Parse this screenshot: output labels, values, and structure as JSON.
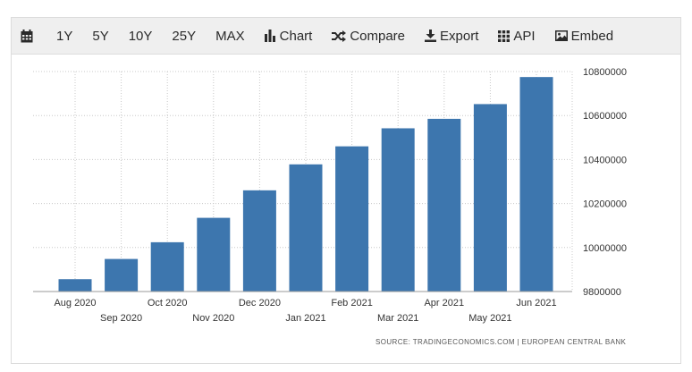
{
  "toolbar": {
    "items": [
      {
        "label": "",
        "icon": "calendar-icon"
      },
      {
        "label": "1Y",
        "icon": ""
      },
      {
        "label": "5Y",
        "icon": ""
      },
      {
        "label": "10Y",
        "icon": ""
      },
      {
        "label": "25Y",
        "icon": ""
      },
      {
        "label": "MAX",
        "icon": ""
      },
      {
        "label": "Chart",
        "icon": "bar-chart-icon"
      },
      {
        "label": "Compare",
        "icon": "shuffle-icon"
      },
      {
        "label": "Export",
        "icon": "download-icon"
      },
      {
        "label": "API",
        "icon": "grid-icon"
      },
      {
        "label": "Embed",
        "icon": "image-icon"
      }
    ]
  },
  "source_text": "SOURCE: TRADINGECONOMICS.COM  |  EUROPEAN CENTRAL BANK",
  "colors": {
    "bar": "#3d76ae",
    "grid": "#c8c8c8",
    "axis_text": "#333333"
  },
  "chart_data": {
    "type": "bar",
    "title": "",
    "xlabel": "",
    "ylabel": "",
    "categories": [
      "Aug 2020",
      "Sep 2020",
      "Oct 2020",
      "Nov 2020",
      "Dec 2020",
      "Jan 2021",
      "Feb 2021",
      "Mar 2021",
      "Apr 2021",
      "May 2021",
      "Jun 2021"
    ],
    "values": [
      9856000,
      9948000,
      10024000,
      10135000,
      10260000,
      10378000,
      10460000,
      10542000,
      10585000,
      10652000,
      10775000
    ],
    "ylim": [
      9800000,
      10800000
    ],
    "yticks": [
      "9800000",
      "10000000",
      "10200000",
      "10400000",
      "10600000",
      "10800000"
    ],
    "ytick_values": [
      9800000,
      10000000,
      10200000,
      10400000,
      10600000,
      10800000
    ],
    "y_axis_side": "right",
    "grid": true
  }
}
